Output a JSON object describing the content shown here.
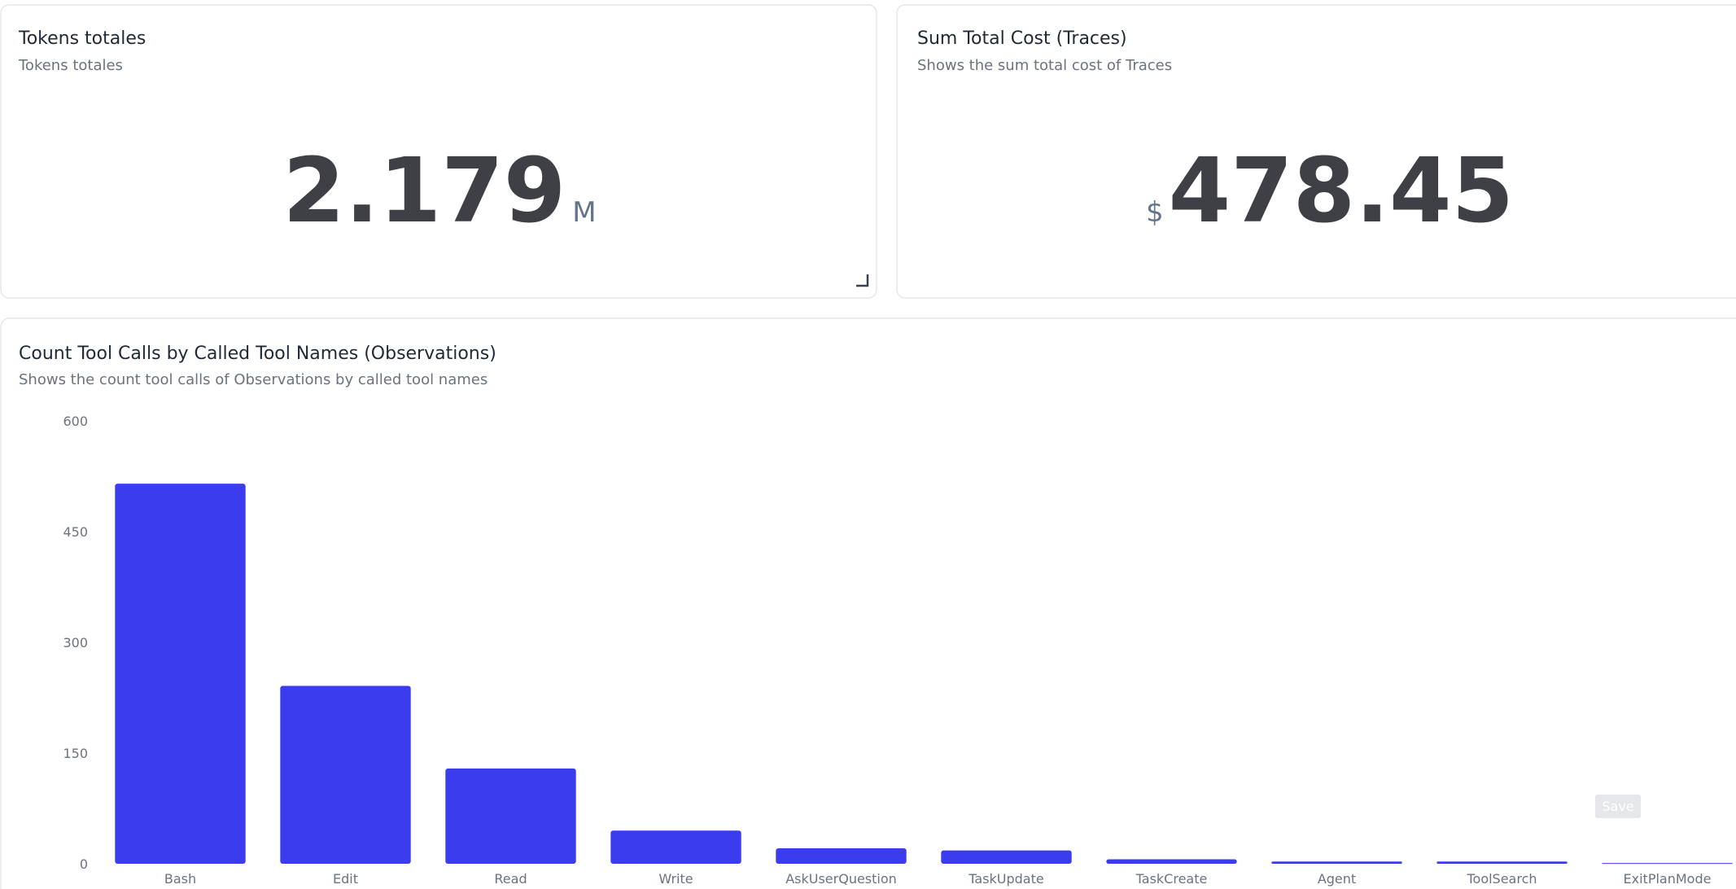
{
  "cards": [
    {
      "title": "Tokens totales",
      "subtitle": "Tokens totales",
      "value": "2.179",
      "unit": "M"
    },
    {
      "title": "Sum Total Cost (Traces)",
      "subtitle": "Shows the sum total cost of Traces",
      "prefix": "$",
      "value": "478.45"
    }
  ],
  "chart_data": {
    "type": "bar",
    "title": "Count Tool Calls by Called Tool Names (Observations)",
    "subtitle": "Shows the count tool calls of Observations by called tool names",
    "categories": [
      "Bash",
      "Edit",
      "Read",
      "Write",
      "AskUserQuestion",
      "TaskUpdate",
      "TaskCreate",
      "Agent",
      "ToolSearch",
      "ExitPlanMode"
    ],
    "values": [
      515,
      241,
      129,
      45,
      21,
      18,
      6,
      3,
      3,
      1
    ],
    "color": "#3c3cef",
    "ylim": [
      0,
      600
    ],
    "yticks": [
      0,
      150,
      300,
      450,
      600
    ],
    "grid": false
  },
  "button": "Save"
}
